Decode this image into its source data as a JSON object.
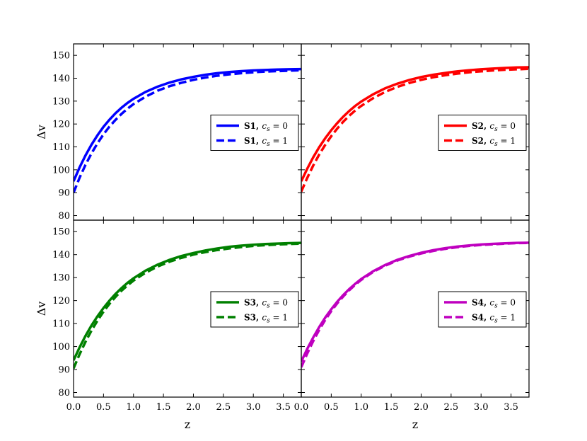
{
  "chart_data": [
    {
      "type": "line",
      "panel": "top-left",
      "xlabel": "",
      "ylabel": "Δv",
      "xlim": [
        0.0,
        3.8
      ],
      "ylim": [
        78,
        155
      ],
      "xticks": [
        0.0,
        0.5,
        1.0,
        1.5,
        2.0,
        2.5,
        3.0,
        3.5
      ],
      "yticks": [
        80,
        90,
        100,
        110,
        120,
        130,
        140,
        150
      ],
      "show_xticklabels": false,
      "show_yticklabels": true,
      "legend_placement": "right",
      "series": [
        {
          "name": "S1, c_s = 0",
          "label_main": "S1,",
          "label_math": "c",
          "label_sub": "s",
          "label_eq": " = 0",
          "color": "#0000ff",
          "style": "solid",
          "x": [
            0.0,
            0.1,
            0.2,
            0.3,
            0.4,
            0.5,
            0.6,
            0.7,
            0.8,
            0.9,
            1.0,
            1.2,
            1.4,
            1.6,
            1.8,
            2.0,
            2.2,
            2.4,
            2.6,
            2.8,
            3.0,
            3.2,
            3.4,
            3.6,
            3.8
          ],
          "y": [
            95.0,
            101.0,
            106.3,
            111.0,
            115.1,
            118.8,
            121.9,
            124.7,
            127.1,
            129.2,
            131.0,
            134.0,
            136.3,
            138.1,
            139.5,
            140.6,
            141.5,
            142.2,
            142.7,
            143.1,
            143.4,
            143.6,
            143.8,
            143.9,
            144.0
          ]
        },
        {
          "name": "S1, c_s = 1",
          "label_main": "S1,",
          "label_math": "c",
          "label_sub": "s",
          "label_eq": " = 1",
          "color": "#0000ff",
          "style": "dashed",
          "x": [
            0.0,
            0.1,
            0.2,
            0.3,
            0.4,
            0.5,
            0.6,
            0.7,
            0.8,
            0.9,
            1.0,
            1.2,
            1.4,
            1.6,
            1.8,
            2.0,
            2.2,
            2.4,
            2.6,
            2.8,
            3.0,
            3.2,
            3.4,
            3.6,
            3.8
          ],
          "y": [
            90.0,
            96.5,
            102.2,
            107.2,
            111.6,
            115.5,
            118.9,
            121.8,
            124.4,
            126.7,
            128.7,
            131.9,
            134.5,
            136.5,
            138.0,
            139.3,
            140.3,
            141.1,
            141.7,
            142.2,
            142.6,
            142.9,
            143.1,
            143.3,
            143.5
          ]
        }
      ]
    },
    {
      "type": "line",
      "panel": "top-right",
      "xlabel": "",
      "ylabel": "",
      "xlim": [
        0.0,
        3.8
      ],
      "ylim": [
        78,
        155
      ],
      "xticks": [
        0.0,
        0.5,
        1.0,
        1.5,
        2.0,
        2.5,
        3.0,
        3.5
      ],
      "yticks": [
        80,
        90,
        100,
        110,
        120,
        130,
        140,
        150
      ],
      "show_xticklabels": false,
      "show_yticklabels": false,
      "legend_placement": "right",
      "series": [
        {
          "name": "S2, c_s = 0",
          "label_main": "S2,",
          "label_math": "c",
          "label_sub": "s",
          "label_eq": " = 0",
          "color": "#ff0000",
          "style": "solid",
          "x": [
            0.0,
            0.1,
            0.2,
            0.3,
            0.4,
            0.5,
            0.6,
            0.7,
            0.8,
            0.9,
            1.0,
            1.2,
            1.4,
            1.6,
            1.8,
            2.0,
            2.2,
            2.4,
            2.6,
            2.8,
            3.0,
            3.2,
            3.4,
            3.6,
            3.8
          ],
          "y": [
            95.0,
            100.5,
            105.5,
            109.9,
            113.8,
            117.3,
            120.4,
            123.2,
            125.7,
            127.9,
            129.8,
            133.0,
            135.6,
            137.6,
            139.2,
            140.5,
            141.5,
            142.3,
            143.0,
            143.5,
            143.9,
            144.2,
            144.5,
            144.7,
            144.8
          ]
        },
        {
          "name": "S2, c_s = 1",
          "label_main": "S2,",
          "label_math": "c",
          "label_sub": "s",
          "label_eq": " = 1",
          "color": "#ff0000",
          "style": "dashed",
          "x": [
            0.0,
            0.1,
            0.2,
            0.3,
            0.4,
            0.5,
            0.6,
            0.7,
            0.8,
            0.9,
            1.0,
            1.2,
            1.4,
            1.6,
            1.8,
            2.0,
            2.2,
            2.4,
            2.6,
            2.8,
            3.0,
            3.2,
            3.4,
            3.6,
            3.8
          ],
          "y": [
            90.5,
            96.5,
            101.9,
            106.7,
            110.9,
            114.7,
            118.0,
            121.0,
            123.6,
            125.9,
            127.9,
            131.3,
            134.0,
            136.2,
            137.9,
            139.3,
            140.4,
            141.3,
            142.0,
            142.6,
            143.0,
            143.4,
            143.7,
            143.9,
            144.1
          ]
        }
      ]
    },
    {
      "type": "line",
      "panel": "bottom-left",
      "xlabel": "z",
      "ylabel": "Δv",
      "xlim": [
        0.0,
        3.8
      ],
      "ylim": [
        78,
        155
      ],
      "xticks": [
        0.0,
        0.5,
        1.0,
        1.5,
        2.0,
        2.5,
        3.0,
        3.5
      ],
      "yticks": [
        80,
        90,
        100,
        110,
        120,
        130,
        140,
        150
      ],
      "show_xticklabels": true,
      "show_yticklabels": true,
      "legend_placement": "right",
      "series": [
        {
          "name": "S3, c_s = 0",
          "label_main": "S3,",
          "label_math": "c",
          "label_sub": "s",
          "label_eq": " = 0",
          "color": "#008000",
          "style": "solid",
          "x": [
            0.0,
            0.1,
            0.2,
            0.3,
            0.4,
            0.5,
            0.6,
            0.7,
            0.8,
            0.9,
            1.0,
            1.2,
            1.4,
            1.6,
            1.8,
            2.0,
            2.2,
            2.4,
            2.6,
            2.8,
            3.0,
            3.2,
            3.4,
            3.6,
            3.8
          ],
          "y": [
            94.0,
            99.6,
            104.7,
            109.2,
            113.2,
            116.8,
            120.0,
            122.9,
            125.4,
            127.7,
            129.7,
            133.0,
            135.6,
            137.7,
            139.4,
            140.7,
            141.8,
            142.7,
            143.4,
            143.9,
            144.3,
            144.6,
            144.8,
            145.0,
            145.1
          ]
        },
        {
          "name": "S3, c_s = 1",
          "label_main": "S3,",
          "label_math": "c",
          "label_sub": "s",
          "label_eq": " = 1",
          "color": "#008000",
          "style": "dashed",
          "x": [
            0.0,
            0.1,
            0.2,
            0.3,
            0.4,
            0.5,
            0.6,
            0.7,
            0.8,
            0.9,
            1.0,
            1.2,
            1.4,
            1.6,
            1.8,
            2.0,
            2.2,
            2.4,
            2.6,
            2.8,
            3.0,
            3.2,
            3.4,
            3.6,
            3.8
          ],
          "y": [
            90.5,
            96.6,
            102.1,
            107.0,
            111.3,
            115.2,
            118.6,
            121.6,
            124.3,
            126.6,
            128.7,
            132.1,
            134.8,
            136.9,
            138.6,
            140.0,
            141.1,
            142.0,
            142.7,
            143.3,
            143.8,
            144.1,
            144.4,
            144.6,
            144.8
          ]
        }
      ]
    },
    {
      "type": "line",
      "panel": "bottom-right",
      "xlabel": "z",
      "ylabel": "",
      "xlim": [
        0.0,
        3.8
      ],
      "ylim": [
        78,
        155
      ],
      "xticks": [
        0.0,
        0.5,
        1.0,
        1.5,
        2.0,
        2.5,
        3.0,
        3.5
      ],
      "yticks": [
        80,
        90,
        100,
        110,
        120,
        130,
        140,
        150
      ],
      "show_xticklabels": true,
      "show_yticklabels": false,
      "legend_placement": "right",
      "series": [
        {
          "name": "S4, c_s = 0",
          "label_main": "S4,",
          "label_math": "c",
          "label_sub": "s",
          "label_eq": " = 0",
          "color": "#bf00bf",
          "style": "solid",
          "x": [
            0.0,
            0.1,
            0.2,
            0.3,
            0.4,
            0.5,
            0.6,
            0.7,
            0.8,
            0.9,
            1.0,
            1.2,
            1.4,
            1.6,
            1.8,
            2.0,
            2.2,
            2.4,
            2.6,
            2.8,
            3.0,
            3.2,
            3.4,
            3.6,
            3.8
          ],
          "y": [
            93.5,
            99.0,
            104.0,
            108.5,
            112.6,
            116.2,
            119.5,
            122.4,
            125.0,
            127.3,
            129.4,
            132.8,
            135.5,
            137.7,
            139.4,
            140.8,
            141.9,
            142.8,
            143.5,
            144.0,
            144.4,
            144.7,
            144.9,
            145.1,
            145.2
          ]
        },
        {
          "name": "S4, c_s = 1",
          "label_main": "S4,",
          "label_math": "c",
          "label_sub": "s",
          "label_eq": " = 1",
          "color": "#bf00bf",
          "style": "dashed",
          "x": [
            0.0,
            0.1,
            0.2,
            0.3,
            0.4,
            0.5,
            0.6,
            0.7,
            0.8,
            0.9,
            1.0,
            1.2,
            1.4,
            1.6,
            1.8,
            2.0,
            2.2,
            2.4,
            2.6,
            2.8,
            3.0,
            3.2,
            3.4,
            3.6,
            3.8
          ],
          "y": [
            91.0,
            97.0,
            102.4,
            107.3,
            111.6,
            115.4,
            118.8,
            121.8,
            124.5,
            126.9,
            129.0,
            132.5,
            135.2,
            137.4,
            139.1,
            140.5,
            141.6,
            142.5,
            143.2,
            143.8,
            144.2,
            144.5,
            144.8,
            145.0,
            145.1
          ]
        }
      ]
    }
  ]
}
